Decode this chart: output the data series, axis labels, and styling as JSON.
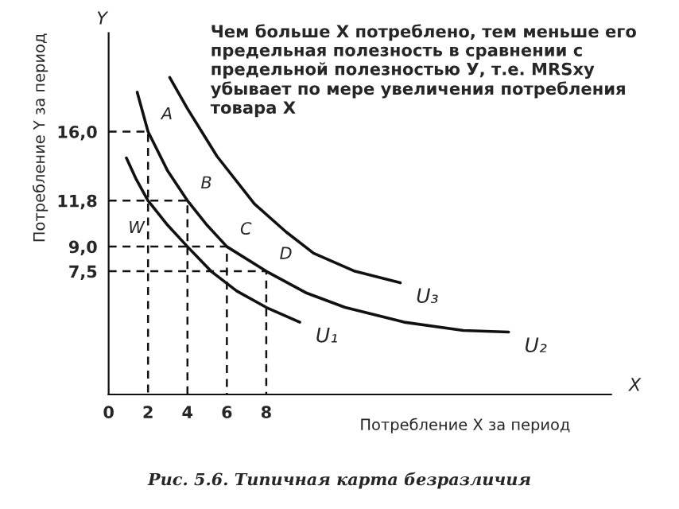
{
  "chart_data": {
    "type": "line",
    "xlabel": "Потребление X за период",
    "ylabel": "Потребление Y за период",
    "xlim": [
      0,
      25.5
    ],
    "ylim": [
      0,
      22
    ],
    "xticks": [
      0,
      2,
      4,
      6,
      8
    ],
    "yticks": [
      {
        "value": 7.5,
        "label": "7,5"
      },
      {
        "value": 9.0,
        "label": "9,0"
      },
      {
        "value": 11.8,
        "label": "11,8"
      },
      {
        "value": 16.0,
        "label": "16,0"
      }
    ],
    "grid": false,
    "legend": false,
    "series": [
      {
        "name": "U₁",
        "color": "#111111",
        "x": [
          0.9,
          1.4,
          2,
          3,
          4,
          5.2,
          6.5,
          8,
          9.7
        ],
        "values": [
          14.4,
          13.1,
          11.8,
          10.3,
          9.0,
          7.5,
          6.3,
          5.3,
          4.4
        ]
      },
      {
        "name": "U₂",
        "color": "#111111",
        "x": [
          1.45,
          2,
          3,
          4,
          5,
          6,
          8,
          10,
          12,
          15,
          18,
          20.3
        ],
        "values": [
          18.4,
          16.0,
          13.6,
          11.8,
          10.3,
          9.0,
          7.5,
          6.2,
          5.3,
          4.4,
          3.9,
          3.8
        ]
      },
      {
        "name": "U₃",
        "color": "#111111",
        "x": [
          3.1,
          4,
          5.5,
          7.4,
          9,
          10.4,
          12.5,
          14.8
        ],
        "values": [
          19.3,
          17.4,
          14.5,
          11.6,
          9.9,
          8.6,
          7.5,
          6.8
        ]
      },
      {
        "color": "#111111",
        "line_style": "dashed",
        "x": [
          0,
          2,
          2
        ],
        "values": [
          16.0,
          16.0,
          0
        ]
      },
      {
        "color": "#111111",
        "line_style": "dashed",
        "x": [
          0,
          4,
          4
        ],
        "values": [
          11.8,
          11.8,
          0
        ]
      },
      {
        "color": "#111111",
        "line_style": "dashed",
        "x": [
          0,
          6,
          6
        ],
        "values": [
          9.0,
          9.0,
          0
        ]
      },
      {
        "color": "#111111",
        "line_style": "dashed",
        "x": [
          0,
          8,
          8
        ],
        "values": [
          7.5,
          7.5,
          0
        ]
      }
    ],
    "annotations": [
      "Чем больше X потреблено, тем меньше его предельная полезность в сравнении с предельной полезностью У, т.е. MRSxy убывает по мере увеличения потребления товара X",
      "Рис. 5.6. Типичная карта безразличия",
      "Y",
      "X",
      {
        "text": "A",
        "x": 2,
        "y": 16.0
      },
      {
        "text": "B",
        "x": 4,
        "y": 11.8
      },
      {
        "text": "C",
        "x": 6,
        "y": 9.0
      },
      {
        "text": "D",
        "x": 8,
        "y": 7.5
      },
      {
        "text": "W",
        "x": 2,
        "y": 11.8
      }
    ]
  }
}
